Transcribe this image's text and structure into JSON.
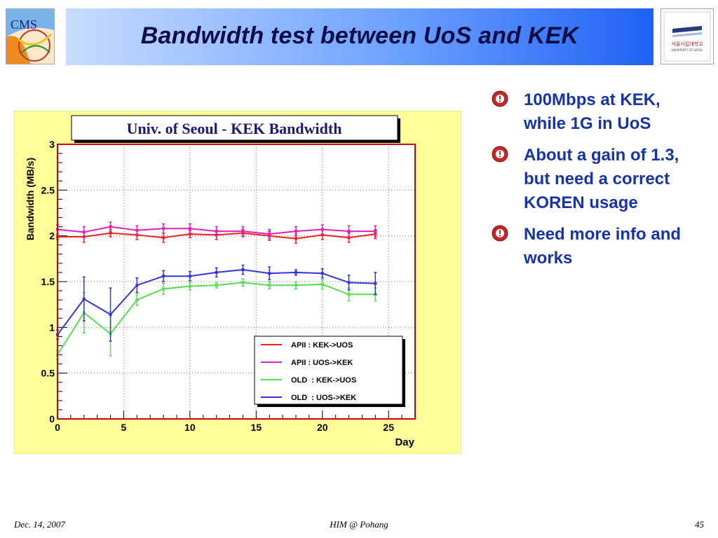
{
  "slide": {
    "title": "Bandwidth test between UoS and KEK",
    "cms_logo_text": "CMS",
    "univ_logo_text": "서울시립대학교",
    "univ_logo_subtext": "UNIVERSITY OF SEOUL"
  },
  "bullets": [
    {
      "text": "100Mbps at KEK, while 1G in UoS"
    },
    {
      "text": "About a gain of 1.3, but need a correct KOREN usage"
    },
    {
      "text": "Need more info and works"
    }
  ],
  "footer": {
    "date": "Dec. 14, 2007",
    "center": "HIM @ Pohang",
    "page": "45"
  },
  "colors": {
    "title_text": "#0d0d4a",
    "bullet_text": "#1633a8",
    "chart_background": "#ffff99",
    "frame": "#cc0000",
    "series": [
      "#ee2222",
      "#dd22bb",
      "#55dd55",
      "#3333dd"
    ]
  },
  "chart_data": {
    "type": "line",
    "title": "Univ. of Seoul - KEK Bandwidth",
    "xlabel": "Day",
    "ylabel": "Bandwidth (MB/s)",
    "xlim": [
      0,
      27
    ],
    "ylim": [
      0,
      3
    ],
    "xticks": [
      0,
      5,
      10,
      15,
      20,
      25
    ],
    "yticks": [
      0,
      0.5,
      1,
      1.5,
      2,
      2.5,
      3
    ],
    "grid": true,
    "legend_position": "bottom-right",
    "x": [
      0,
      2,
      4,
      6,
      8,
      10,
      12,
      14,
      16,
      18,
      20,
      22,
      24
    ],
    "series": [
      {
        "name": "APII : KEK->UOS",
        "color": "#ee2222",
        "values": [
          1.99,
          1.99,
          2.03,
          2.01,
          1.98,
          2.02,
          2.01,
          2.03,
          2.0,
          1.97,
          2.01,
          1.98,
          2.02
        ],
        "errors": [
          0.03,
          0.06,
          0.04,
          0.05,
          0.05,
          0.04,
          0.05,
          0.04,
          0.05,
          0.05,
          0.05,
          0.05,
          0.05
        ]
      },
      {
        "name": "APII : UOS->KEK",
        "color": "#dd22bb",
        "values": [
          2.07,
          2.04,
          2.1,
          2.06,
          2.08,
          2.08,
          2.05,
          2.05,
          2.02,
          2.05,
          2.07,
          2.05,
          2.05
        ],
        "errors": [
          0.05,
          0.06,
          0.05,
          0.05,
          0.05,
          0.05,
          0.05,
          0.05,
          0.05,
          0.05,
          0.05,
          0.06,
          0.06
        ]
      },
      {
        "name": "OLD  : KEK->UOS",
        "color": "#55dd55",
        "values": [
          0.7,
          1.16,
          0.93,
          1.3,
          1.42,
          1.45,
          1.46,
          1.49,
          1.46,
          1.46,
          1.47,
          1.36,
          1.36
        ],
        "errors": [
          0.05,
          0.22,
          0.24,
          0.06,
          0.06,
          0.04,
          0.03,
          0.04,
          0.04,
          0.04,
          0.05,
          0.07,
          0.07
        ]
      },
      {
        "name": "OLD  : UOS->KEK",
        "color": "#3333dd",
        "values": [
          0.92,
          1.31,
          1.14,
          1.46,
          1.56,
          1.56,
          1.6,
          1.63,
          1.59,
          1.6,
          1.59,
          1.49,
          1.48
        ],
        "errors": [
          0.05,
          0.24,
          0.29,
          0.08,
          0.06,
          0.05,
          0.05,
          0.05,
          0.07,
          0.03,
          0.05,
          0.08,
          0.12
        ]
      }
    ]
  }
}
